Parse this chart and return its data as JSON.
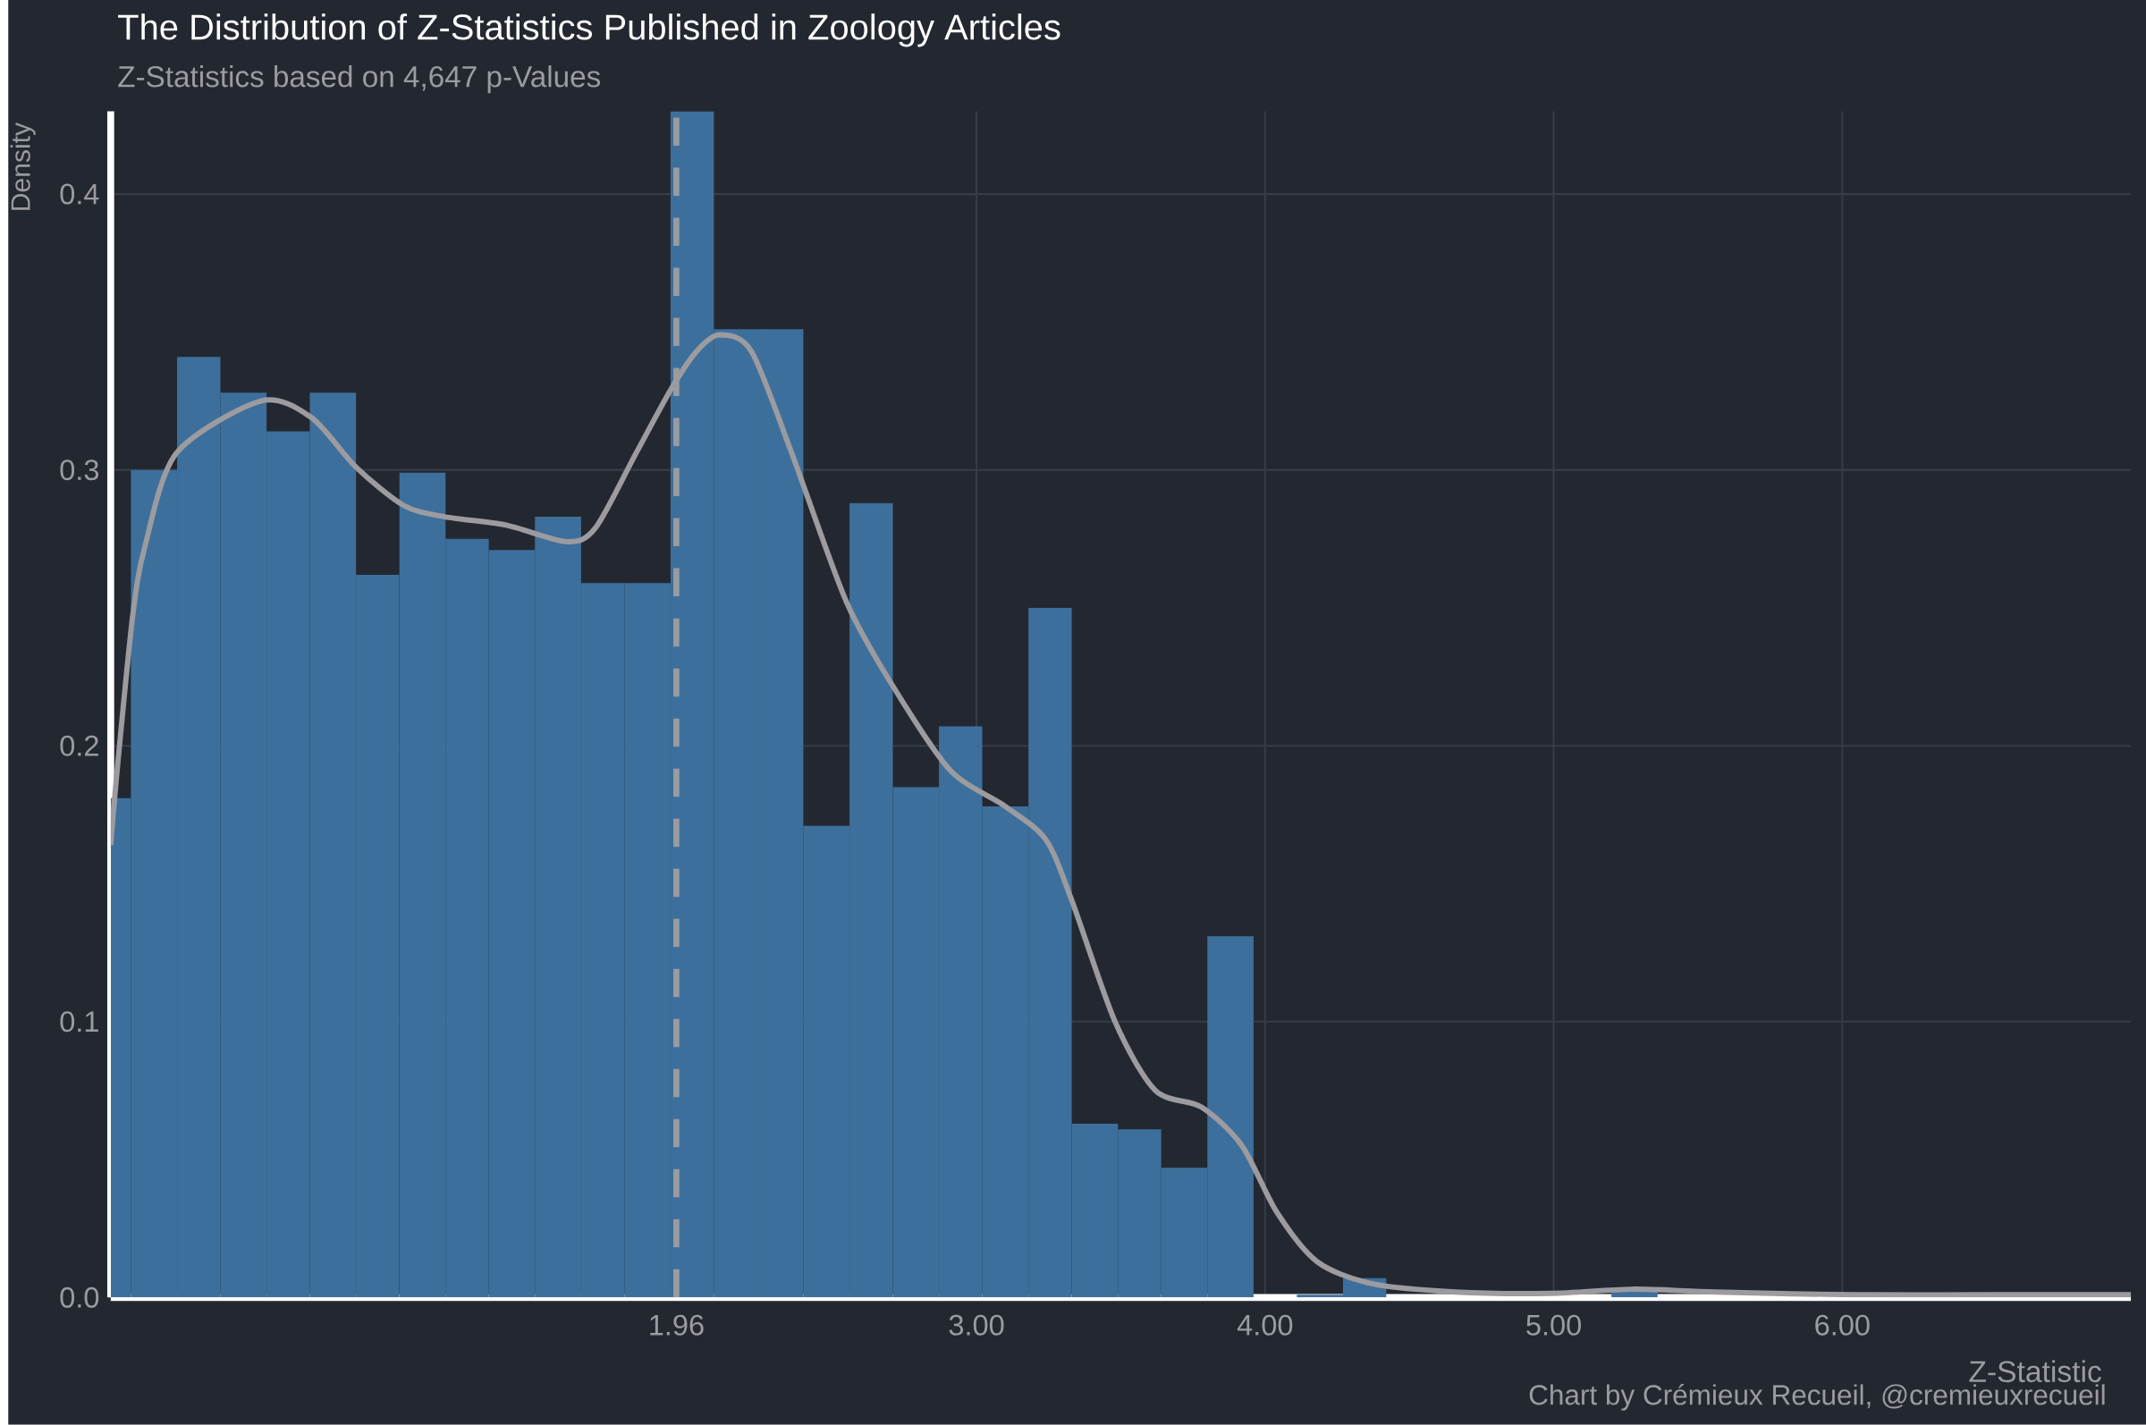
{
  "chart_data": {
    "type": "histogram",
    "title": "The Distribution of Z-Statistics Published in Zoology Articles",
    "subtitle": "Z-Statistics based on 4,647 p-Values",
    "xlabel": "Z-Statistic",
    "ylabel": "Density",
    "annotations": [
      "Chart by Crémieux Recueil, @cremieuxrecueil"
    ],
    "bins": [
      0,
      0.07,
      0.23,
      0.38,
      0.54,
      0.69,
      0.85,
      1.0,
      1.16,
      1.31,
      1.47,
      1.63,
      1.78,
      1.94,
      2.09,
      2.25,
      2.4,
      2.56,
      2.71,
      2.87,
      3.02,
      3.18,
      3.33,
      3.49,
      3.64,
      3.8,
      3.96,
      4.11,
      4.27,
      4.42,
      5.2,
      5.36
    ],
    "values": [
      0.181,
      0.3,
      0.341,
      0.328,
      0.314,
      0.328,
      0.262,
      0.299,
      0.275,
      0.271,
      0.283,
      0.259,
      0.259,
      0.43,
      0.351,
      0.351,
      0.171,
      0.288,
      0.185,
      0.207,
      0.178,
      0.25,
      0.063,
      0.061,
      0.047,
      0.131,
      0,
      0.001,
      0.007,
      0,
      0.003
    ],
    "color": "#3d6f9c",
    "series": [
      {
        "type": "line",
        "color": "#9b9ba0",
        "x": [
          0,
          0.024,
          0.076,
          0.118,
          0.227,
          0.52,
          0.695,
          0.85,
          1.017,
          1.158,
          1.37,
          1.58,
          1.68,
          1.82,
          1.94,
          2.03,
          2.11,
          2.22,
          2.36,
          2.55,
          2.72,
          2.91,
          3.1,
          3.24,
          3.33,
          3.48,
          3.62,
          3.78,
          3.92,
          4.04,
          4.18,
          4.37,
          4.66,
          4.99,
          5.27,
          5.56,
          6.03,
          6.55,
          7.0
        ],
        "values": [
          0.164,
          0.193,
          0.247,
          0.272,
          0.306,
          0.325,
          0.319,
          0.301,
          0.287,
          0.283,
          0.28,
          0.274,
          0.279,
          0.306,
          0.329,
          0.343,
          0.349,
          0.343,
          0.306,
          0.252,
          0.22,
          0.191,
          0.178,
          0.166,
          0.144,
          0.1,
          0.075,
          0.069,
          0.055,
          0.031,
          0.013,
          0.005,
          0.002,
          0.0015,
          0.003,
          0.002,
          0.001,
          0.001,
          0.001
        ]
      }
    ],
    "ref_lines": [
      {
        "axis": "x",
        "value": 1.96,
        "color": "#9b9ba0",
        "line_style": "dashed"
      }
    ],
    "xlim": [
      0,
      7
    ],
    "ylim": [
      0,
      0.43
    ],
    "xticks": [
      1.96,
      {
        "value": 3,
        "label": "3.00"
      },
      {
        "value": 4,
        "label": "4.00"
      },
      {
        "value": 5,
        "label": "5.00"
      },
      {
        "value": 6,
        "label": "6.00"
      }
    ],
    "yticks": [
      {
        "value": 0,
        "label": "0.0"
      },
      0.1,
      0.2,
      0.3,
      0.4
    ],
    "grid": true
  }
}
